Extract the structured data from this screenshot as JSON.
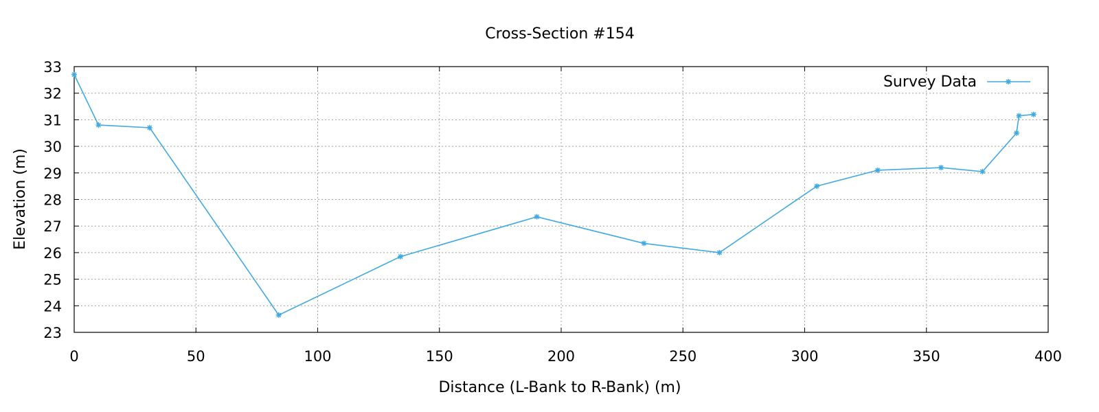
{
  "chart_data": {
    "type": "line",
    "title": "Cross-Section #154",
    "xlabel": "Distance (L-Bank to R-Bank) (m)",
    "ylabel": "Elevation (m)",
    "xlim": [
      0,
      400
    ],
    "ylim": [
      23,
      33
    ],
    "xticks": [
      0,
      50,
      100,
      150,
      200,
      250,
      300,
      350,
      400
    ],
    "yticks": [
      23,
      24,
      25,
      26,
      27,
      28,
      29,
      30,
      31,
      32,
      33
    ],
    "grid": true,
    "legend": "top-right",
    "color": "#3fa9e0",
    "series": [
      {
        "name": "Survey Data",
        "marker": "asterisk",
        "x": [
          0,
          10,
          31,
          84,
          134,
          190,
          234,
          265,
          305,
          330,
          356,
          373,
          387,
          388,
          394
        ],
        "y": [
          32.7,
          30.8,
          30.7,
          23.65,
          25.85,
          27.35,
          26.35,
          26.0,
          28.5,
          29.1,
          29.2,
          29.05,
          30.5,
          31.15,
          31.2
        ]
      }
    ]
  }
}
